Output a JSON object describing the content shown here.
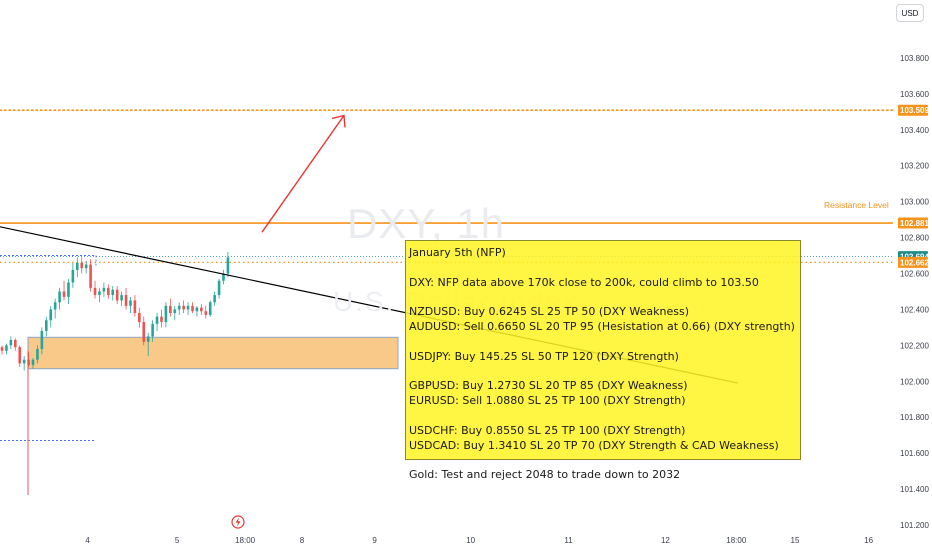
{
  "currency_button": "USD",
  "watermark": {
    "symbol": "DXY, 1h",
    "name": "U.S. Dollar Index"
  },
  "resistance_label": "Resistance Level",
  "price_tags": [
    {
      "price": 103.509,
      "text": "103.509",
      "color": "#f7931a"
    },
    {
      "price": 102.881,
      "text": "102.881",
      "color": "#f7931a"
    },
    {
      "price": 102.694,
      "text": "102.694",
      "color": "#1e8a8a"
    },
    {
      "price": 102.662,
      "text": "102.662",
      "color": "#f7931a"
    }
  ],
  "note": {
    "title": "January 5th (NFP)",
    "dxy": "DXY: NFP data above 170k close to 200k, could climb to 103.50",
    "nzdusd": "NZDUSD: Buy 0.6245 SL 25 TP 50 (DXY Weakness)",
    "audusd": "AUDUSD: Sell 0.6650 SL 20 TP 95 (Hesistation at 0.66) (DXY strength)",
    "usdjpy": "USDJPY: Buy 145.25 SL 50 TP 120 (DXY Strength)",
    "gbpusd": "GBPUSD: Buy 1.2730 SL 20 TP 85 (DXY Weakness)",
    "eurusd": "EURUSD: Sell 1.0880 SL 25 TP 100 (DXY Strength)",
    "usdchf": "USDCHF: Buy 0.8550 SL 25 TP 100 (DXY Strength)",
    "usdcad": "USDCAD: Buy 1.3410 SL 20 TP 70 (DXY Strength & CAD Weakness)",
    "gold": "Gold: Test and reject 2048 to trade down to 2032"
  },
  "colors": {
    "up": "#26a69a",
    "down": "#ef5350",
    "resistance": "#f7931a",
    "zone": "#f9c98a",
    "arrow": "#e53935",
    "trend": "#000000"
  },
  "icons": {
    "logo": "bolt-logo-icon"
  },
  "chart_data": {
    "type": "candlestick",
    "symbol": "DXY",
    "interval": "1h",
    "ylim": [
      101.2,
      103.9
    ],
    "y_ticks": [
      "103.800",
      "103.600",
      "103.400",
      "103.200",
      "103.000",
      "102.800",
      "102.600",
      "102.400",
      "102.200",
      "102.000",
      "101.800",
      "101.600",
      "101.400",
      "101.200"
    ],
    "x_ticks": [
      {
        "label": "4",
        "pos": 0.094
      },
      {
        "label": "5",
        "pos": 0.19
      },
      {
        "label": "18:00",
        "pos": 0.263
      },
      {
        "label": "8",
        "pos": 0.324
      },
      {
        "label": "9",
        "pos": 0.402
      },
      {
        "label": "10",
        "pos": 0.505
      },
      {
        "label": "11",
        "pos": 0.61
      },
      {
        "label": "12",
        "pos": 0.714
      },
      {
        "label": "18:00",
        "pos": 0.79
      },
      {
        "label": "15",
        "pos": 0.853
      },
      {
        "label": "16",
        "pos": 0.932
      }
    ],
    "levels": {
      "target": 103.509,
      "resistance": 102.881,
      "last_price": 102.694,
      "level_2": 102.662,
      "upper_dotted": 102.7,
      "lower_dotted": 101.67,
      "demand_zone": [
        102.07,
        102.245
      ]
    },
    "candles": [
      [
        102.19,
        102.2,
        102.15,
        102.17
      ],
      [
        102.17,
        102.21,
        102.15,
        102.2
      ],
      [
        102.2,
        102.25,
        102.18,
        102.23
      ],
      [
        102.23,
        102.24,
        102.17,
        102.19
      ],
      [
        102.19,
        102.2,
        102.08,
        102.1
      ],
      [
        102.1,
        102.14,
        102.06,
        102.12
      ],
      [
        102.12,
        102.16,
        102.08,
        102.09
      ],
      [
        102.09,
        102.13,
        102.07,
        102.12
      ],
      [
        102.12,
        102.2,
        102.1,
        102.18
      ],
      [
        102.18,
        102.3,
        102.15,
        102.28
      ],
      [
        102.28,
        102.36,
        102.25,
        102.34
      ],
      [
        102.34,
        102.42,
        102.3,
        102.4
      ],
      [
        102.4,
        102.46,
        102.35,
        102.44
      ],
      [
        102.44,
        102.52,
        102.4,
        102.5
      ],
      [
        102.5,
        102.56,
        102.45,
        102.47
      ],
      [
        102.47,
        102.57,
        102.43,
        102.55
      ],
      [
        102.55,
        102.66,
        102.52,
        102.62
      ],
      [
        102.62,
        102.69,
        102.58,
        102.66
      ],
      [
        102.66,
        102.69,
        102.6,
        102.63
      ],
      [
        102.63,
        102.67,
        102.6,
        102.65
      ],
      [
        102.65,
        102.68,
        102.5,
        102.52
      ],
      [
        102.52,
        102.56,
        102.46,
        102.48
      ],
      [
        102.48,
        102.52,
        102.44,
        102.5
      ],
      [
        102.5,
        102.55,
        102.47,
        102.52
      ],
      [
        102.52,
        102.54,
        102.46,
        102.48
      ],
      [
        102.48,
        102.53,
        102.45,
        102.51
      ],
      [
        102.51,
        102.53,
        102.43,
        102.45
      ],
      [
        102.45,
        102.5,
        102.42,
        102.48
      ],
      [
        102.48,
        102.52,
        102.4,
        102.42
      ],
      [
        102.42,
        102.47,
        102.38,
        102.45
      ],
      [
        102.45,
        102.48,
        102.36,
        102.38
      ],
      [
        102.38,
        102.41,
        102.3,
        102.33
      ],
      [
        102.33,
        102.36,
        102.2,
        102.22
      ],
      [
        102.22,
        102.27,
        102.14,
        102.25
      ],
      [
        102.25,
        102.34,
        102.22,
        102.32
      ],
      [
        102.32,
        102.38,
        102.28,
        102.36
      ],
      [
        102.36,
        102.4,
        102.3,
        102.33
      ],
      [
        102.33,
        102.44,
        102.3,
        102.42
      ],
      [
        102.42,
        102.46,
        102.36,
        102.38
      ],
      [
        102.38,
        102.42,
        102.34,
        102.4
      ],
      [
        102.4,
        102.44,
        102.37,
        102.42
      ],
      [
        102.42,
        102.45,
        102.38,
        102.4
      ],
      [
        102.4,
        102.44,
        102.37,
        102.42
      ],
      [
        102.42,
        102.44,
        102.38,
        102.39
      ],
      [
        102.39,
        102.42,
        102.36,
        102.41
      ],
      [
        102.41,
        102.43,
        102.37,
        102.39
      ],
      [
        102.39,
        102.42,
        102.35,
        102.37
      ],
      [
        102.37,
        102.45,
        102.36,
        102.44
      ],
      [
        102.44,
        102.5,
        102.42,
        102.48
      ],
      [
        102.48,
        102.57,
        102.46,
        102.56
      ],
      [
        102.56,
        102.62,
        102.54,
        102.6
      ],
      [
        102.6,
        102.72,
        102.58,
        102.69
      ]
    ]
  }
}
